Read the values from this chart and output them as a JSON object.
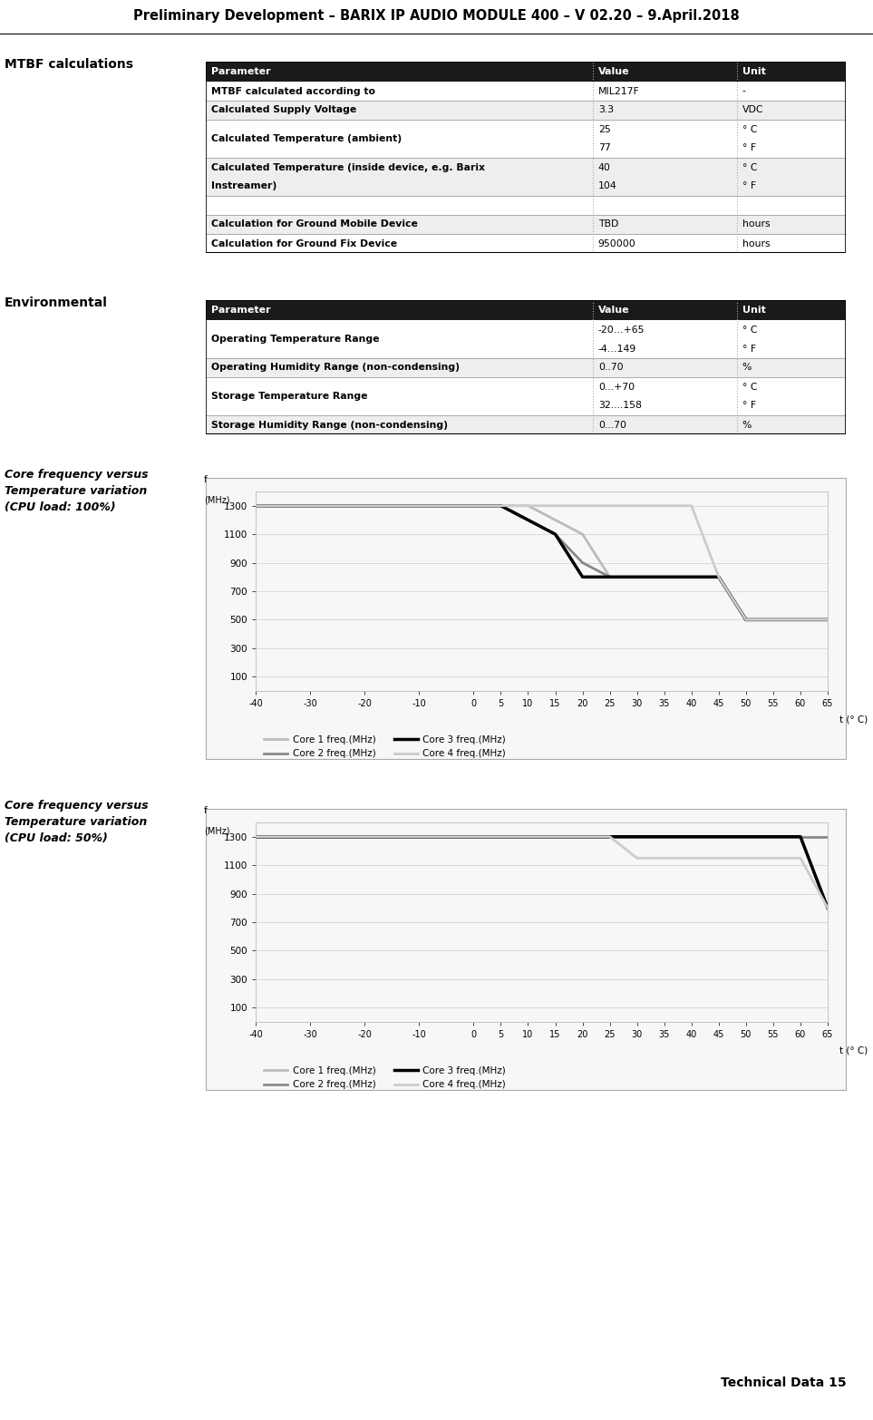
{
  "title": "Preliminary Development – BARIX IP AUDIO MODULE 400 – V 02.20 – 9.April.2018",
  "footer": "Technical Data 15",
  "page_bg": "#ffffff",
  "mtbf_section_label": "MTBF calculations",
  "mtbf_headers": [
    "Parameter",
    "Value",
    "Unit"
  ],
  "mtbf_rows": [
    [
      "MTBF calculated according to",
      "MIL217F",
      "-"
    ],
    [
      "Calculated Supply Voltage",
      "3.3",
      "VDC"
    ],
    [
      "Calculated Temperature (ambient)",
      "25\n77",
      "° C\n° F"
    ],
    [
      "Calculated Temperature (inside device, e.g. Barix\nInstreamer)",
      "40\n104",
      "° C\n° F"
    ],
    [
      "",
      "",
      ""
    ],
    [
      "Calculation for Ground Mobile Device",
      "TBD",
      "hours"
    ],
    [
      "Calculation for Ground Fix Device",
      "950000",
      "hours"
    ]
  ],
  "env_section_label": "Environmental",
  "env_headers": [
    "Parameter",
    "Value",
    "Unit"
  ],
  "env_rows": [
    [
      "Operating Temperature Range",
      "-20…+65\n-4…149",
      "° C\n° F"
    ],
    [
      "Operating Humidity Range (non-condensing)",
      "0..70",
      "%"
    ],
    [
      "Storage Temperature Range",
      "0...+70\n32....158",
      "° C\n° F"
    ],
    [
      "Storage Humidity Range (non-condensing)",
      "0...70",
      "%"
    ]
  ],
  "chart1_title": "Core frequency versus\nTemperature variation\n(CPU load: 100%)",
  "chart2_title": "Core frequency versus\nTemperature variation\n(CPU load: 50%)",
  "temp_axis": [
    -40,
    -30,
    -20,
    -10,
    0,
    5,
    10,
    15,
    20,
    25,
    30,
    35,
    40,
    45,
    50,
    55,
    60,
    65
  ],
  "chart1_core1": [
    1300,
    1300,
    1300,
    1300,
    1300,
    1300,
    1300,
    1200,
    1100,
    800,
    800,
    800,
    800,
    800,
    500,
    500,
    500,
    500
  ],
  "chart1_core2": [
    1300,
    1300,
    1300,
    1300,
    1300,
    1300,
    1200,
    1100,
    900,
    800,
    800,
    800,
    800,
    800,
    500,
    500,
    500,
    500
  ],
  "chart1_core3": [
    1300,
    1300,
    1300,
    1300,
    1300,
    1300,
    1200,
    1100,
    800,
    800,
    800,
    800,
    800,
    800,
    500,
    500,
    500,
    500
  ],
  "chart1_core4": [
    1300,
    1300,
    1300,
    1300,
    1300,
    1300,
    1300,
    1300,
    1300,
    1300,
    1300,
    1300,
    1300,
    800,
    500,
    500,
    500,
    500
  ],
  "chart2_core1": [
    1300,
    1300,
    1300,
    1300,
    1300,
    1300,
    1300,
    1300,
    1300,
    1300,
    1300,
    1300,
    1300,
    1300,
    1300,
    1300,
    1300,
    800
  ],
  "chart2_core2": [
    1300,
    1300,
    1300,
    1300,
    1300,
    1300,
    1300,
    1300,
    1300,
    1300,
    1300,
    1300,
    1300,
    1300,
    1300,
    1300,
    1300,
    1300
  ],
  "chart2_core3": [
    1300,
    1300,
    1300,
    1300,
    1300,
    1300,
    1300,
    1300,
    1300,
    1300,
    1300,
    1300,
    1300,
    1300,
    1300,
    1300,
    1300,
    800
  ],
  "chart2_core4": [
    1300,
    1300,
    1300,
    1300,
    1300,
    1300,
    1300,
    1300,
    1300,
    1300,
    1150,
    1150,
    1150,
    1150,
    1150,
    1150,
    1150,
    800
  ],
  "header_bg": "#1a1a1a",
  "header_fg": "#ffffff",
  "row_odd_bg": "#ffffff",
  "row_even_bg": "#eeeeee",
  "thin_border": "#aaaaaa",
  "thick_border": "#000000"
}
